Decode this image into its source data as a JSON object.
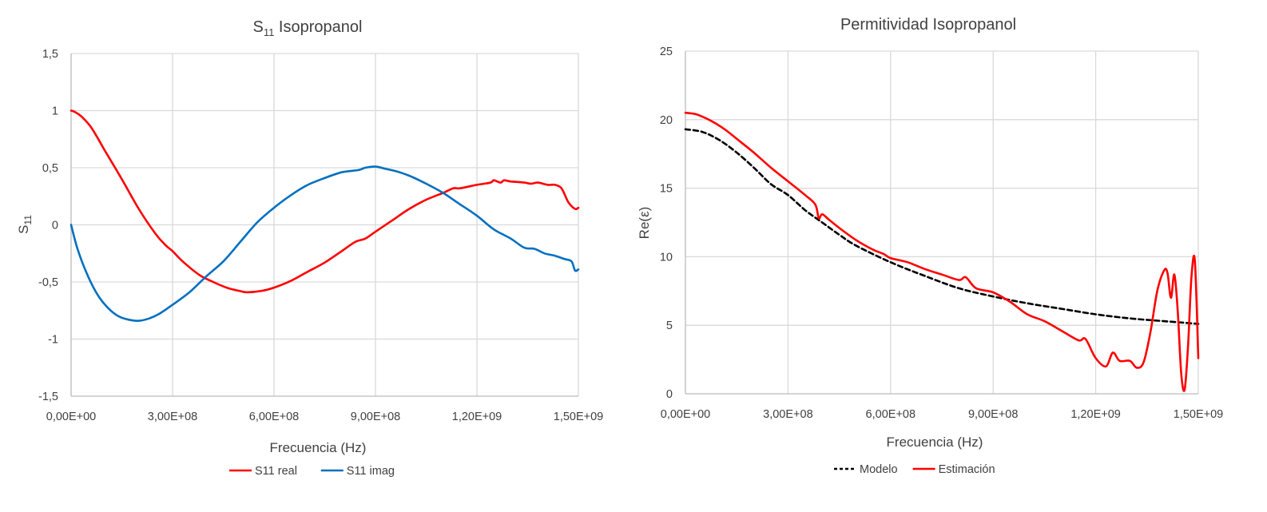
{
  "chart_data": [
    {
      "type": "line",
      "title": "S",
      "title_sub": "11",
      "title_rest": " Isopropanol",
      "xlabel": "Frecuencia (Hz)",
      "ylabel": "S",
      "ylabel_sub": "11",
      "xlim": [
        0,
        1500000000
      ],
      "ylim": [
        -1.5,
        1.5
      ],
      "xticks": [
        0,
        300000000,
        600000000,
        900000000,
        1200000000,
        1500000000
      ],
      "xtick_labels": [
        "0,00E+00",
        "3,00E+08",
        "6,00E+08",
        "9,00E+08",
        "1,20E+09",
        "1,50E+09"
      ],
      "yticks": [
        -1.5,
        -1,
        -0.5,
        0,
        0.5,
        1,
        1.5
      ],
      "ytick_labels": [
        "-1,5",
        "-1",
        "-0,5",
        "0",
        "0,5",
        "1",
        "1,5"
      ],
      "grid": true,
      "legend": "bottom",
      "series": [
        {
          "name": "S11 real",
          "color": "#ff0000",
          "dash": "",
          "x": [
            0,
            10000000,
            30000000,
            60000000,
            100000000,
            150000000,
            200000000,
            250000000,
            280000000,
            300000000,
            330000000,
            380000000,
            420000000,
            460000000,
            500000000,
            520000000,
            560000000,
            600000000,
            650000000,
            700000000,
            750000000,
            800000000,
            840000000,
            870000000,
            900000000,
            950000000,
            1000000000,
            1050000000,
            1100000000,
            1130000000,
            1150000000,
            1200000000,
            1240000000,
            1250000000,
            1270000000,
            1280000000,
            1300000000,
            1340000000,
            1360000000,
            1380000000,
            1410000000,
            1430000000,
            1450000000,
            1470000000,
            1490000000,
            1500000000
          ],
          "y": [
            1,
            0.99,
            0.95,
            0.85,
            0.65,
            0.4,
            0.14,
            -0.08,
            -0.18,
            -0.23,
            -0.32,
            -0.44,
            -0.5,
            -0.55,
            -0.58,
            -0.59,
            -0.58,
            -0.55,
            -0.49,
            -0.41,
            -0.33,
            -0.23,
            -0.15,
            -0.12,
            -0.06,
            0.04,
            0.14,
            0.22,
            0.28,
            0.32,
            0.32,
            0.35,
            0.37,
            0.39,
            0.37,
            0.39,
            0.38,
            0.37,
            0.36,
            0.37,
            0.35,
            0.35,
            0.32,
            0.2,
            0.14,
            0.15
          ]
        },
        {
          "name": "S11 imag",
          "color": "#0070c0",
          "dash": "",
          "x": [
            0,
            20000000,
            50000000,
            80000000,
            110000000,
            140000000,
            170000000,
            200000000,
            230000000,
            260000000,
            300000000,
            350000000,
            400000000,
            450000000,
            500000000,
            550000000,
            600000000,
            650000000,
            700000000,
            750000000,
            800000000,
            850000000,
            870000000,
            900000000,
            930000000,
            960000000,
            1000000000,
            1050000000,
            1100000000,
            1150000000,
            1200000000,
            1250000000,
            1300000000,
            1340000000,
            1370000000,
            1400000000,
            1430000000,
            1460000000,
            1480000000,
            1490000000,
            1500000000
          ],
          "y": [
            0,
            -0.22,
            -0.45,
            -0.62,
            -0.73,
            -0.8,
            -0.83,
            -0.84,
            -0.82,
            -0.78,
            -0.7,
            -0.59,
            -0.45,
            -0.32,
            -0.15,
            0.02,
            0.15,
            0.26,
            0.35,
            0.41,
            0.46,
            0.48,
            0.5,
            0.51,
            0.49,
            0.47,
            0.43,
            0.36,
            0.28,
            0.18,
            0.08,
            -0.04,
            -0.12,
            -0.2,
            -0.21,
            -0.25,
            -0.27,
            -0.3,
            -0.32,
            -0.4,
            -0.39
          ]
        }
      ]
    },
    {
      "type": "line",
      "title": "Permitividad Isopropanol",
      "xlabel": "Frecuencia (Hz)",
      "ylabel": "Re(ε)",
      "xlim": [
        0,
        1500000000
      ],
      "ylim": [
        0,
        25
      ],
      "xticks": [
        0,
        300000000,
        600000000,
        900000000,
        1200000000,
        1500000000
      ],
      "xtick_labels": [
        "0,00E+00",
        "3,00E+08",
        "6,00E+08",
        "9,00E+08",
        "1,20E+09",
        "1,50E+09"
      ],
      "yticks": [
        0,
        5,
        10,
        15,
        20,
        25
      ],
      "ytick_labels": [
        "0",
        "5",
        "10",
        "15",
        "20",
        "25"
      ],
      "grid": true,
      "legend": "bottom",
      "series": [
        {
          "name": "Modelo",
          "color": "#000000",
          "dash": "6,4",
          "x": [
            0,
            50000000,
            100000000,
            150000000,
            200000000,
            250000000,
            300000000,
            350000000,
            400000000,
            450000000,
            500000000,
            600000000,
            700000000,
            800000000,
            900000000,
            1000000000,
            1100000000,
            1200000000,
            1300000000,
            1400000000,
            1500000000
          ],
          "y": [
            19.3,
            19.1,
            18.5,
            17.6,
            16.5,
            15.3,
            14.5,
            13.4,
            12.5,
            11.6,
            10.8,
            9.6,
            8.6,
            7.7,
            7.1,
            6.6,
            6.2,
            5.8,
            5.5,
            5.3,
            5.1
          ]
        },
        {
          "name": "Estimación",
          "color": "#ff0000",
          "dash": "",
          "x": [
            0,
            30000000,
            60000000,
            90000000,
            120000000,
            150000000,
            200000000,
            250000000,
            300000000,
            350000000,
            380000000,
            390000000,
            400000000,
            420000000,
            450000000,
            500000000,
            550000000,
            580000000,
            600000000,
            650000000,
            700000000,
            750000000,
            800000000,
            820000000,
            850000000,
            900000000,
            950000000,
            1000000000,
            1050000000,
            1100000000,
            1150000000,
            1170000000,
            1200000000,
            1230000000,
            1250000000,
            1270000000,
            1300000000,
            1320000000,
            1340000000,
            1360000000,
            1380000000,
            1400000000,
            1410000000,
            1420000000,
            1430000000,
            1440000000,
            1450000000,
            1460000000,
            1470000000,
            1480000000,
            1490000000,
            1500000000
          ],
          "y": [
            20.5,
            20.4,
            20.1,
            19.7,
            19.2,
            18.6,
            17.6,
            16.5,
            15.5,
            14.5,
            13.8,
            12.8,
            13.1,
            12.7,
            12.1,
            11.2,
            10.5,
            10.2,
            9.9,
            9.6,
            9.1,
            8.7,
            8.3,
            8.5,
            7.7,
            7.4,
            6.7,
            5.8,
            5.3,
            4.6,
            3.9,
            4.0,
            2.6,
            2.0,
            3.0,
            2.4,
            2.4,
            1.9,
            2.3,
            4.5,
            7.5,
            9.0,
            8.8,
            7.0,
            8.7,
            6.0,
            1.5,
            0.3,
            3.5,
            8.5,
            9.7,
            2.6
          ]
        }
      ]
    }
  ]
}
